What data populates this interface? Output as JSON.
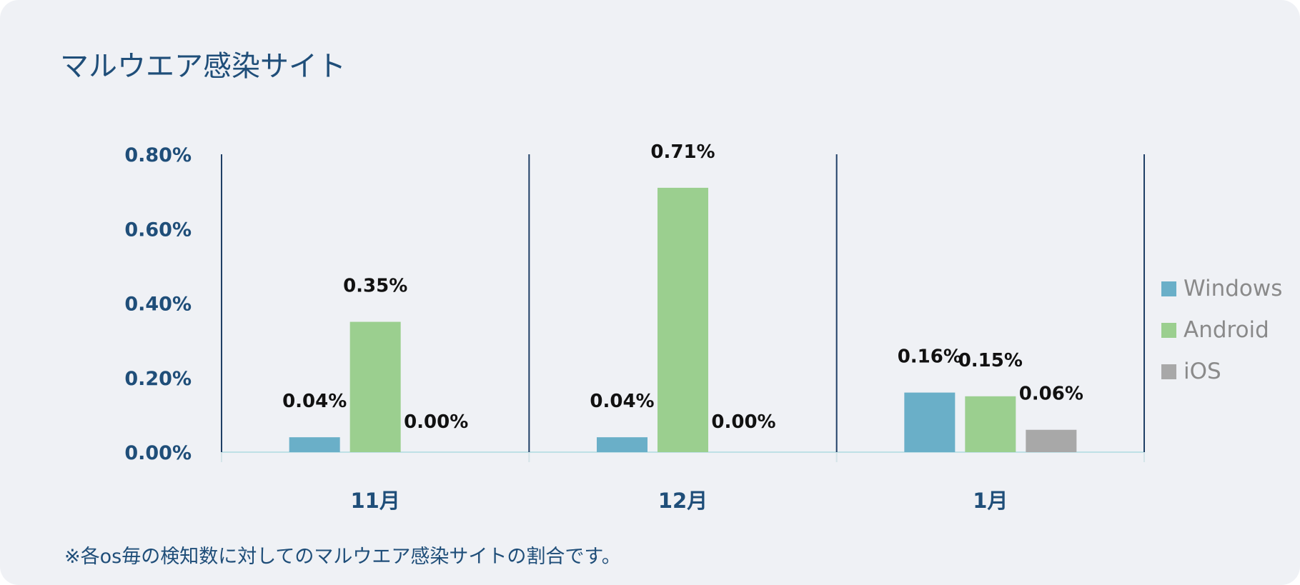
{
  "title": "マルウエア感染サイト",
  "footnote": "※各os毎の検知数に対してのマルウエア感染サイトの割合です。",
  "chart_data": {
    "type": "bar",
    "categories": [
      "11月",
      "12月",
      "1月"
    ],
    "series": [
      {
        "name": "Windows",
        "values": [
          0.04,
          0.04,
          0.16
        ],
        "labels": [
          "0.04%",
          "0.04%",
          "0.16%"
        ],
        "color": "#6aafc8"
      },
      {
        "name": "Android",
        "values": [
          0.35,
          0.71,
          0.15
        ],
        "labels": [
          "0.35%",
          "0.71%",
          "0.15%"
        ],
        "color": "#9bcf8f"
      },
      {
        "name": "iOS",
        "values": [
          0.0,
          0.0,
          0.06
        ],
        "labels": [
          "0.00%",
          "0.00%",
          "0.06%"
        ],
        "color": "#a8a8a8"
      }
    ],
    "y_ticks": [
      "0.00%",
      "0.20%",
      "0.40%",
      "0.60%",
      "0.80%"
    ],
    "ylim": [
      0,
      0.8
    ],
    "ylabel": "",
    "xlabel": "",
    "legend_position": "right",
    "grid": false
  }
}
